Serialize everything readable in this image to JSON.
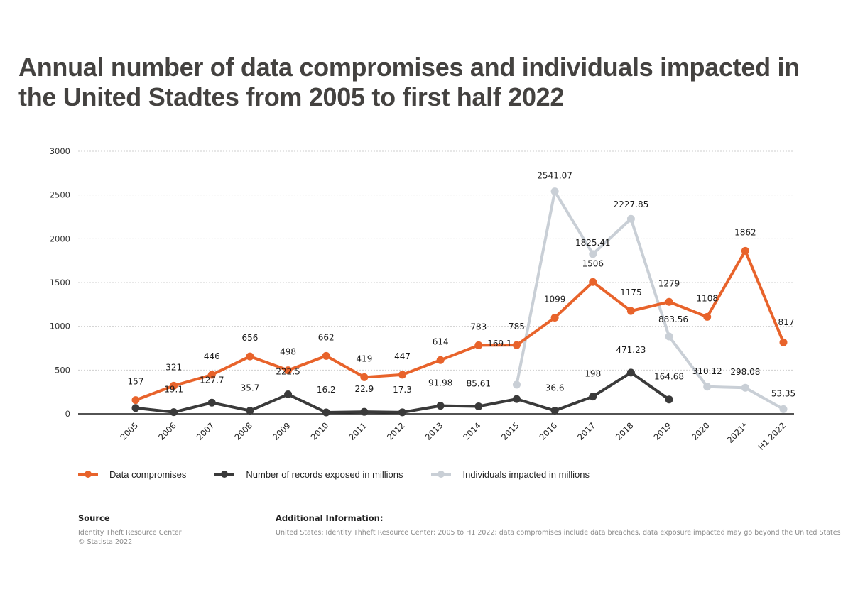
{
  "title": "Annual number of data compromises and individuals impacted in the United Stadtes from 2005 to first half 2022",
  "chart_data": {
    "type": "line",
    "title": "Annual number of data compromises and individuals impacted in the United Stadtes from 2005 to first half 2022",
    "xlabel": "",
    "ylabel": "",
    "ylim": [
      0,
      3000
    ],
    "yticks": [
      0,
      500,
      1000,
      1500,
      2000,
      2500,
      3000
    ],
    "grid": true,
    "legend_position": "bottom",
    "categories": [
      "2005",
      "2006",
      "2007",
      "2008",
      "2009",
      "2010",
      "2011",
      "2012",
      "2013",
      "2014",
      "2015",
      "2016",
      "2017",
      "2018",
      "2019",
      "2020",
      "2021*",
      "H1 2022"
    ],
    "series": [
      {
        "name": "Data compromises",
        "color": "#e8632b",
        "values": [
          157,
          321,
          446,
          656,
          498,
          662,
          419,
          447,
          614,
          783,
          785,
          1099,
          1506,
          1175,
          1279,
          1108,
          1862,
          817
        ],
        "labels": [
          "157",
          "321",
          "446",
          "656",
          "498",
          "662",
          "419",
          "447",
          "614",
          "783",
          "785",
          "1099",
          "1506",
          "1175",
          "1279",
          "1108",
          "1862",
          "817"
        ]
      },
      {
        "name": "Number of records exposed in millions",
        "color": "#3a3a3a",
        "values": [
          67,
          19.1,
          127.7,
          35.7,
          222.5,
          16.2,
          22.9,
          17.3,
          91.98,
          85.61,
          169.1,
          36.6,
          198,
          471.23,
          164.68,
          null,
          null,
          null
        ],
        "labels": [
          "",
          "19.1",
          "127.7",
          "35.7",
          "222.5",
          "16.2",
          "22.9",
          "17.3",
          "91.98",
          "85.61",
          "169.1",
          "36.6",
          "198",
          "471.23",
          "164.68",
          "",
          "",
          ""
        ]
      },
      {
        "name": "Individuals impacted in millions",
        "color": "#c9cfd6",
        "values": [
          null,
          null,
          null,
          null,
          null,
          null,
          null,
          null,
          null,
          null,
          333,
          2541.07,
          1825.41,
          2227.85,
          883.56,
          310.12,
          298.08,
          53.35
        ],
        "labels": [
          "",
          "",
          "",
          "",
          "",
          "",
          "",
          "",
          "",
          "",
          "",
          "2541.07",
          "1825.41",
          "2227.85",
          "883.56",
          "310.12",
          "298.08",
          "53.35"
        ]
      }
    ]
  },
  "legend": [
    {
      "label": "Data compromises",
      "color": "#e8632b"
    },
    {
      "label": "Number of records exposed in millions",
      "color": "#3a3a3a"
    },
    {
      "label": "Individuals impacted in millions",
      "color": "#c9cfd6"
    }
  ],
  "footer": {
    "source_heading": "Source",
    "source_lines": [
      "Identity Theft Resource Center",
      "© Statista 2022"
    ],
    "info_heading": "Additional Information:",
    "info_text": "United States: Identity Thheft Resource Center; 2005 to H1 2022; data compromises include data breaches, data exposure impacted may go beyond the United States"
  }
}
